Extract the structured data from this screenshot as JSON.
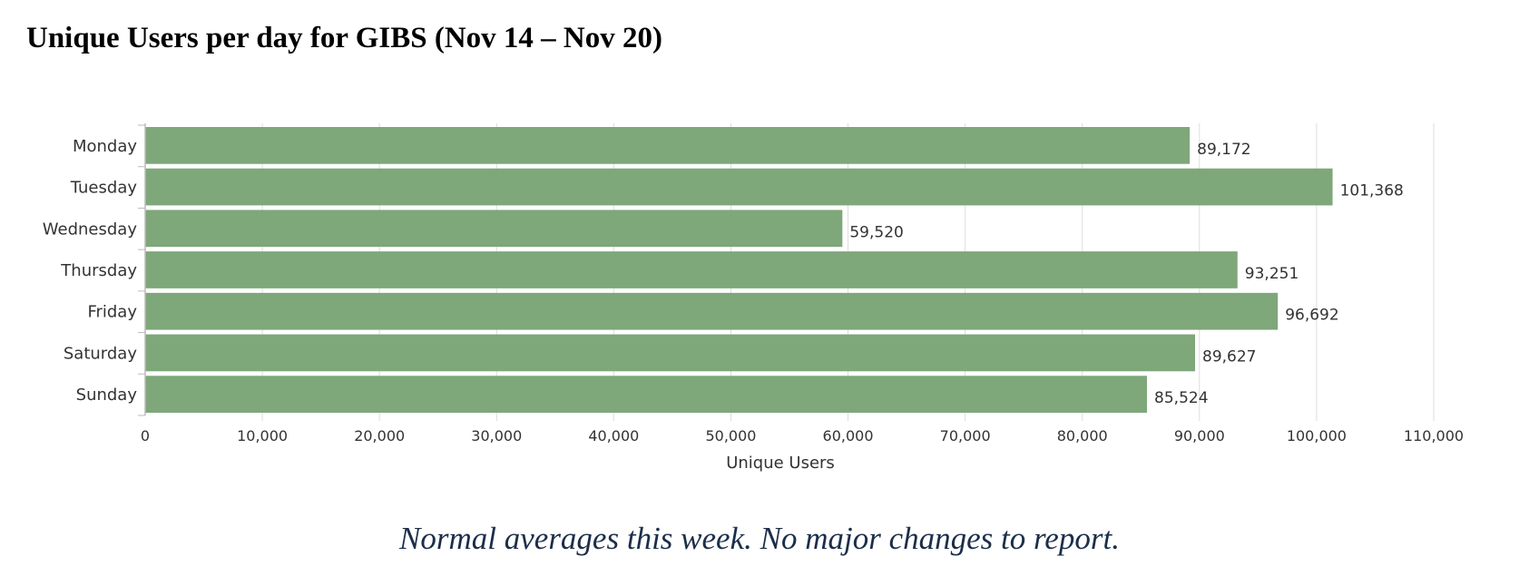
{
  "title": "Unique Users per day for GIBS (Nov 14 – Nov 20)",
  "note": "Normal averages this week.  No major changes to report.",
  "colors": {
    "bar": "#7ea77a",
    "grid": "#dddddd",
    "axis": "#bbbbbb",
    "text": "#333333",
    "note": "#1c2e4a"
  },
  "chart_data": {
    "type": "bar",
    "orientation": "horizontal",
    "categories": [
      "Monday",
      "Tuesday",
      "Wednesday",
      "Thursday",
      "Friday",
      "Saturday",
      "Sunday"
    ],
    "values": [
      89172,
      101368,
      59520,
      93251,
      96692,
      89627,
      85524
    ],
    "value_labels": [
      "89,172",
      "101,368",
      "59,520",
      "93,251",
      "96,692",
      "89,627",
      "85,524"
    ],
    "xlabel": "Unique Users",
    "ylabel": "",
    "xlim": [
      0,
      110000
    ],
    "x_ticks": [
      0,
      10000,
      20000,
      30000,
      40000,
      50000,
      60000,
      70000,
      80000,
      90000,
      100000,
      110000
    ],
    "x_tick_labels": [
      "0",
      "10,000",
      "20,000",
      "30,000",
      "40,000",
      "50,000",
      "60,000",
      "70,000",
      "80,000",
      "90,000",
      "100,000",
      "110,000"
    ],
    "grid": true,
    "legend": "none"
  }
}
